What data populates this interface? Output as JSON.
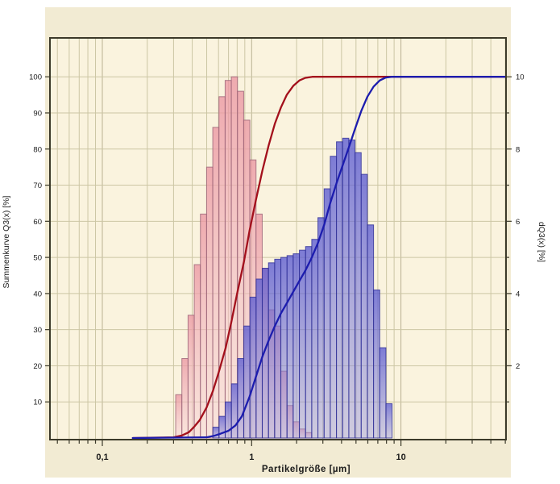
{
  "chart_data": {
    "type": "bar+line (particle size distribution: density histograms on right axis, cumulative curves on left axis)",
    "title": "",
    "xlabel": "Partikelgröße  [µm]",
    "ylabel_left": "Summenkurve Q3(x)  [%]",
    "ylabel_right": "dQ3(x)  [%]",
    "x_scale": "log",
    "x_range_um": [
      0.045,
      50
    ],
    "y_left_range": [
      0,
      111
    ],
    "y_right_range": [
      0,
      11.1
    ],
    "grid": "on",
    "legend": "none",
    "x_major_ticks": [
      {
        "value": 0.1,
        "label": "0,1"
      },
      {
        "value": 1,
        "label": "1"
      },
      {
        "value": 10,
        "label": "10"
      }
    ],
    "y_left_tick_values": [
      10,
      20,
      30,
      40,
      50,
      60,
      70,
      80,
      90,
      100
    ],
    "y_right_labeled_ticks": [
      2,
      4,
      6,
      8,
      10
    ],
    "series": [
      {
        "name": "fine-fraction-histogram",
        "type": "bar",
        "axis": "right",
        "start_um": 0.31,
        "class_ratio": 1.1,
        "heights_dQ3_pct": [
          1.2,
          2.2,
          3.4,
          4.8,
          6.2,
          7.5,
          8.6,
          9.45,
          9.9,
          10,
          9.6,
          8.8,
          7.7,
          6.2,
          4.7,
          3.55,
          3.1,
          1.85,
          0.9,
          0.45,
          0.25,
          0.15
        ],
        "fill_top": "#eb96a2",
        "fill_bottom": "#f8d2d8",
        "stroke": "#9a6275"
      },
      {
        "name": "coarse-fraction-histogram",
        "type": "bar",
        "axis": "right",
        "start_um": 0.55,
        "class_ratio": 1.1,
        "heights_dQ3_pct": [
          0.3,
          0.6,
          1.0,
          1.5,
          2.2,
          3.1,
          3.9,
          4.4,
          4.7,
          4.85,
          4.95,
          5.0,
          5.05,
          5.1,
          5.2,
          5.3,
          5.5,
          6.1,
          6.9,
          7.8,
          8.2,
          8.3,
          8.25,
          7.9,
          7.3,
          5.9,
          4.1,
          2.5,
          0.95
        ],
        "fill_top": "#5a5ad2",
        "fill_bottom": "#9a9ade",
        "stroke": "#2e2e96"
      },
      {
        "name": "fine-fraction-cumulative-Q3",
        "type": "line",
        "axis": "left",
        "color": "#a3101c",
        "points_um_pct": [
          [
            0.16,
            0
          ],
          [
            0.3,
            0.2
          ],
          [
            0.34,
            0.7
          ],
          [
            0.38,
            1.6
          ],
          [
            0.41,
            3
          ],
          [
            0.45,
            5
          ],
          [
            0.5,
            8.5
          ],
          [
            0.55,
            13
          ],
          [
            0.6,
            18
          ],
          [
            0.67,
            25
          ],
          [
            0.73,
            32
          ],
          [
            0.8,
            40
          ],
          [
            0.89,
            49
          ],
          [
            0.97,
            57.5
          ],
          [
            1.07,
            66
          ],
          [
            1.18,
            74
          ],
          [
            1.3,
            81
          ],
          [
            1.43,
            87
          ],
          [
            1.57,
            91.5
          ],
          [
            1.72,
            95
          ],
          [
            1.9,
            97.5
          ],
          [
            2.09,
            99
          ],
          [
            2.29,
            99.7
          ],
          [
            2.55,
            100
          ],
          [
            5.0,
            100
          ],
          [
            9.0,
            100
          ],
          [
            50,
            100
          ]
        ]
      },
      {
        "name": "coarse-fraction-cumulative-Q3",
        "type": "line",
        "axis": "left",
        "color": "#1c1cae",
        "points_um_pct": [
          [
            0.16,
            0
          ],
          [
            0.5,
            0.2
          ],
          [
            0.56,
            0.6
          ],
          [
            0.62,
            1.2
          ],
          [
            0.7,
            2
          ],
          [
            0.78,
            3.5
          ],
          [
            0.86,
            6
          ],
          [
            0.97,
            11.5
          ],
          [
            1.07,
            17
          ],
          [
            1.18,
            22.5
          ],
          [
            1.3,
            27
          ],
          [
            1.43,
            31
          ],
          [
            1.57,
            34.5
          ],
          [
            1.73,
            37.5
          ],
          [
            1.9,
            40.5
          ],
          [
            2.09,
            43.5
          ],
          [
            2.3,
            46.5
          ],
          [
            2.53,
            50
          ],
          [
            2.78,
            54
          ],
          [
            3.06,
            59
          ],
          [
            3.36,
            65
          ],
          [
            3.7,
            70.5
          ],
          [
            4.07,
            75.5
          ],
          [
            4.48,
            80.5
          ],
          [
            4.92,
            85.5
          ],
          [
            5.42,
            90.5
          ],
          [
            5.96,
            94.5
          ],
          [
            6.56,
            97.3
          ],
          [
            7.21,
            99
          ],
          [
            7.93,
            99.8
          ],
          [
            8.72,
            100
          ],
          [
            50,
            100
          ]
        ]
      }
    ],
    "colors": {
      "page_background": "#ffffff",
      "panel_background": "#f2ebd3",
      "plot_background": "#faf3de",
      "grid_minor": "#ccc6a4",
      "grid_major": "#b9b293",
      "frame": "#3c3a2a",
      "tick_label": "#1a1a1a"
    }
  }
}
